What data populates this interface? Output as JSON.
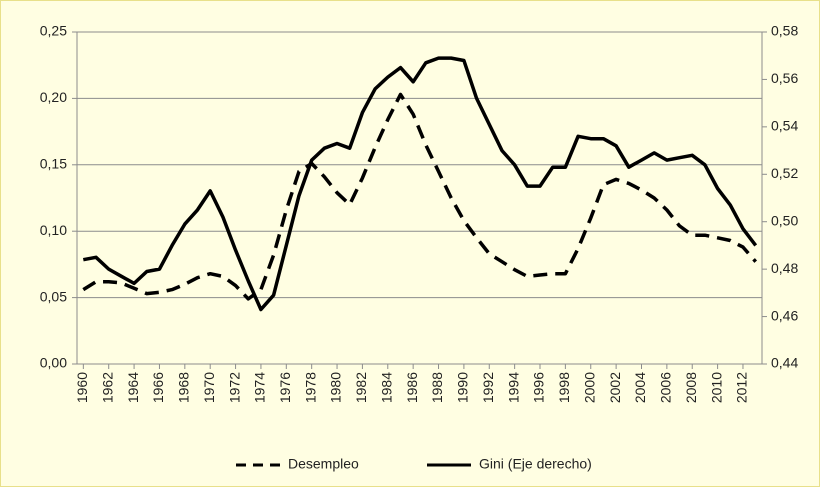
{
  "chart_data": {
    "type": "line",
    "x": [
      1960,
      1961,
      1962,
      1963,
      1964,
      1965,
      1966,
      1967,
      1968,
      1969,
      1970,
      1971,
      1972,
      1973,
      1974,
      1975,
      1976,
      1977,
      1978,
      1979,
      1980,
      1981,
      1982,
      1983,
      1984,
      1985,
      1986,
      1987,
      1988,
      1989,
      1990,
      1991,
      1992,
      1993,
      1994,
      1995,
      1996,
      1997,
      1998,
      1999,
      2000,
      2001,
      2002,
      2003,
      2004,
      2005,
      2006,
      2007,
      2008,
      2009,
      2010,
      2011,
      2012,
      2013
    ],
    "xlim": [
      1959.5,
      2013.5
    ],
    "xticks": [
      1960,
      1962,
      1964,
      1966,
      1968,
      1970,
      1972,
      1974,
      1976,
      1978,
      1980,
      1982,
      1984,
      1986,
      1988,
      1990,
      1992,
      1994,
      1996,
      1998,
      2000,
      2002,
      2004,
      2006,
      2008,
      2010,
      2012
    ],
    "ylim": [
      0,
      0.25
    ],
    "yticks": [
      {
        "value": 0,
        "label": "0,00"
      },
      {
        "value": 0.05,
        "label": "0,05"
      },
      {
        "value": 0.1,
        "label": "0,10"
      },
      {
        "value": 0.15,
        "label": "0,15"
      },
      {
        "value": 0.2,
        "label": "0,20"
      },
      {
        "value": 0.25,
        "label": "0,25"
      }
    ],
    "y2lim": [
      0.44,
      0.58
    ],
    "y2ticks": [
      {
        "value": 0.44,
        "label": "0,44"
      },
      {
        "value": 0.46,
        "label": "0,46"
      },
      {
        "value": 0.48,
        "label": "0,48"
      },
      {
        "value": 0.5,
        "label": "0,50"
      },
      {
        "value": 0.52,
        "label": "0,52"
      },
      {
        "value": 0.54,
        "label": "0,54"
      },
      {
        "value": 0.56,
        "label": "0,56"
      },
      {
        "value": 0.58,
        "label": "0,58"
      }
    ],
    "grid": true,
    "legend": "bottom",
    "series": [
      {
        "name": "Desempleo",
        "color": "#000000",
        "dash": true,
        "values": [
          0.056,
          0.062,
          0.062,
          0.061,
          0.057,
          0.053,
          0.054,
          0.056,
          0.06,
          0.065,
          0.068,
          0.066,
          0.059,
          0.049,
          0.056,
          0.082,
          0.116,
          0.145,
          0.151,
          0.141,
          0.129,
          0.12,
          0.14,
          0.163,
          0.184,
          0.203,
          0.188,
          0.165,
          0.145,
          0.125,
          0.108,
          0.095,
          0.083,
          0.077,
          0.071,
          0.066,
          0.067,
          0.068,
          0.068,
          0.087,
          0.11,
          0.135,
          0.139,
          0.136,
          0.131,
          0.125,
          0.116,
          0.104,
          0.097,
          0.097,
          0.095,
          0.093,
          0.088,
          0.077
        ]
      },
      {
        "name": "Gini (Eje derecho)",
        "color": "#000000",
        "axis": "y2",
        "dash": false,
        "values": [
          0.484,
          0.485,
          0.48,
          0.477,
          0.474,
          0.479,
          0.48,
          0.49,
          0.499,
          0.505,
          0.513,
          0.502,
          0.488,
          0.475,
          0.463,
          0.469,
          0.49,
          0.511,
          0.526,
          0.531,
          0.533,
          0.531,
          0.546,
          0.556,
          0.561,
          0.565,
          0.559,
          0.567,
          0.569,
          0.569,
          0.568,
          0.552,
          0.541,
          0.53,
          0.524,
          0.515,
          0.515,
          0.523,
          0.523,
          0.536,
          0.535,
          0.535,
          0.532,
          0.523,
          0.526,
          0.529,
          0.526,
          0.527,
          0.528,
          0.524,
          0.514,
          0.507,
          0.497,
          0.49
        ]
      }
    ]
  }
}
